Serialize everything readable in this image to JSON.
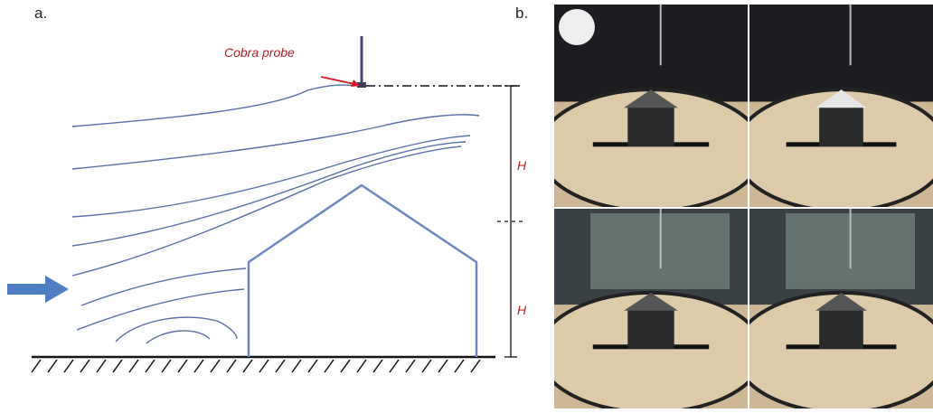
{
  "panel_a": {
    "label": "a.",
    "probe_label": "Cobra probe",
    "heights": [
      "H",
      "H"
    ]
  },
  "panel_b": {
    "label": "b."
  }
}
